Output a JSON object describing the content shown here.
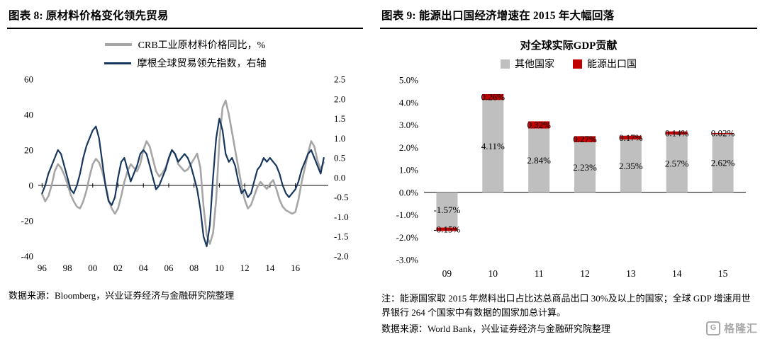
{
  "left_panel": {
    "title": "图表 8:  原材料价格变化领先贸易",
    "source": "数据来源：Bloomberg，兴业证券经济与金融研究院整理"
  },
  "right_panel": {
    "title": "图表 9:  能源出口国经济增速在 2015 年大幅回落",
    "note": "注：能源国家取 2015 年燃料出口占比达总商品出口 30%及以上的国家；全球 GDP 增速用世界银行 264 个国家中有数据的国家加总计算。",
    "source": "数据来源：World Bank，兴业证券经济与金融研究院整理"
  },
  "logo": {
    "icon": "G",
    "text": "格隆汇"
  },
  "colors": {
    "crb_line": "#a6a6a6",
    "morgan_line": "#17375e",
    "bar_other": "#bfbfbf",
    "bar_energy": "#c00000"
  },
  "chart_data": [
    {
      "type": "line",
      "title": "图表 8: 原材料价格变化领先贸易",
      "x_range": [
        1995.7,
        2018.6
      ],
      "x_start": 1996,
      "x_step": 0.25,
      "x_tick_labels": [
        "96",
        "98",
        "00",
        "02",
        "04",
        "06",
        "08",
        "10",
        "12",
        "14",
        "16"
      ],
      "x_tick_values": [
        1996,
        1998,
        2000,
        2002,
        2004,
        2006,
        2008,
        2010,
        2012,
        2014,
        2016
      ],
      "left_axis": {
        "ticks": [
          "60",
          "40",
          "20",
          "0",
          "-20",
          "-40"
        ],
        "range": [
          -40,
          60
        ]
      },
      "right_axis": {
        "ticks": [
          "2.5",
          "2.0",
          "1.5",
          "1.0",
          "0.5",
          "0.0",
          "-0.5",
          "-1.0",
          "-1.5",
          "-2.0"
        ],
        "range": [
          -2.0,
          2.5
        ]
      },
      "series": [
        {
          "name": "CRB工业原材料价格同比，%",
          "axis": "left",
          "color": "#a6a6a6",
          "width": 2.6,
          "y": [
            -5,
            -9,
            -6,
            0,
            8,
            12,
            10,
            6,
            1,
            -5,
            -9,
            -12,
            -13,
            -9,
            -3,
            5,
            12,
            15,
            13,
            8,
            1,
            -8,
            -13,
            -16,
            -13,
            -6,
            2,
            8,
            12,
            10,
            8,
            12,
            20,
            25,
            22,
            15,
            8,
            5,
            7,
            10,
            15,
            20,
            18,
            12,
            10,
            8,
            9,
            12,
            15,
            18,
            10,
            -12,
            -28,
            -33,
            -27,
            -8,
            25,
            44,
            48,
            40,
            30,
            20,
            10,
            0,
            -8,
            -13,
            -11,
            -6,
            -1,
            2,
            0,
            -2,
            1,
            3,
            -2,
            -8,
            -12,
            -14,
            -15,
            -16,
            -15,
            -8,
            2,
            10,
            18,
            25,
            22,
            14,
            9,
            13
          ]
        },
        {
          "name": "摩根全球贸易领先指数，右轴",
          "axis": "right",
          "color": "#17375e",
          "width": 2.2,
          "y": [
            -0.4,
            -0.2,
            0.1,
            0.3,
            0.5,
            0.7,
            0.6,
            0.3,
            0,
            -0.3,
            -0.4,
            -0.2,
            0.1,
            0.5,
            0.8,
            1.0,
            1.2,
            1.3,
            1.0,
            0.4,
            -0.2,
            -0.6,
            -0.7,
            -0.5,
            0,
            0.4,
            0.5,
            0.2,
            -0.1,
            0.1,
            0.3,
            0.6,
            0.7,
            0.6,
            0.3,
            0,
            -0.3,
            -0.2,
            0,
            0.2,
            0.5,
            0.7,
            0.6,
            0.4,
            0.5,
            0.6,
            0.5,
            0.3,
            0,
            -0.3,
            -0.8,
            -1.5,
            -1.75,
            -1.2,
            0,
            1.0,
            1.5,
            1.2,
            0.6,
            0.4,
            0.5,
            0.3,
            -0.1,
            -0.4,
            -0.3,
            -0.5,
            -0.4,
            -0.1,
            0.2,
            0.3,
            0.5,
            0.4,
            0.5,
            0.4,
            0.3,
            0.1,
            -0.2,
            -0.4,
            -0.5,
            -0.4,
            -0.3,
            -0.1,
            0.2,
            0.4,
            0.6,
            0.7,
            0.5,
            0.3,
            0.1,
            0.5
          ]
        }
      ]
    },
    {
      "type": "bar",
      "stacked": true,
      "title": "对全球实际GDP贡献",
      "categories": [
        "09",
        "10",
        "11",
        "12",
        "13",
        "14",
        "15"
      ],
      "series": [
        {
          "name": "其他国家",
          "color": "#bfbfbf",
          "values": [
            -1.57,
            4.11,
            2.84,
            2.23,
            2.35,
            2.57,
            2.62
          ]
        },
        {
          "name": "能源出口国",
          "color": "#c00000",
          "values": [
            -0.15,
            0.26,
            0.32,
            0.27,
            0.17,
            0.14,
            0.02
          ]
        }
      ],
      "ylim": [
        -3.0,
        5.0
      ],
      "y_ticks": [
        "5.0%",
        "4.0%",
        "3.0%",
        "2.0%",
        "1.0%",
        "0.0%",
        "-1.0%",
        "-2.0%",
        "-3.0%"
      ],
      "legend_position": "top",
      "grid": false
    }
  ]
}
